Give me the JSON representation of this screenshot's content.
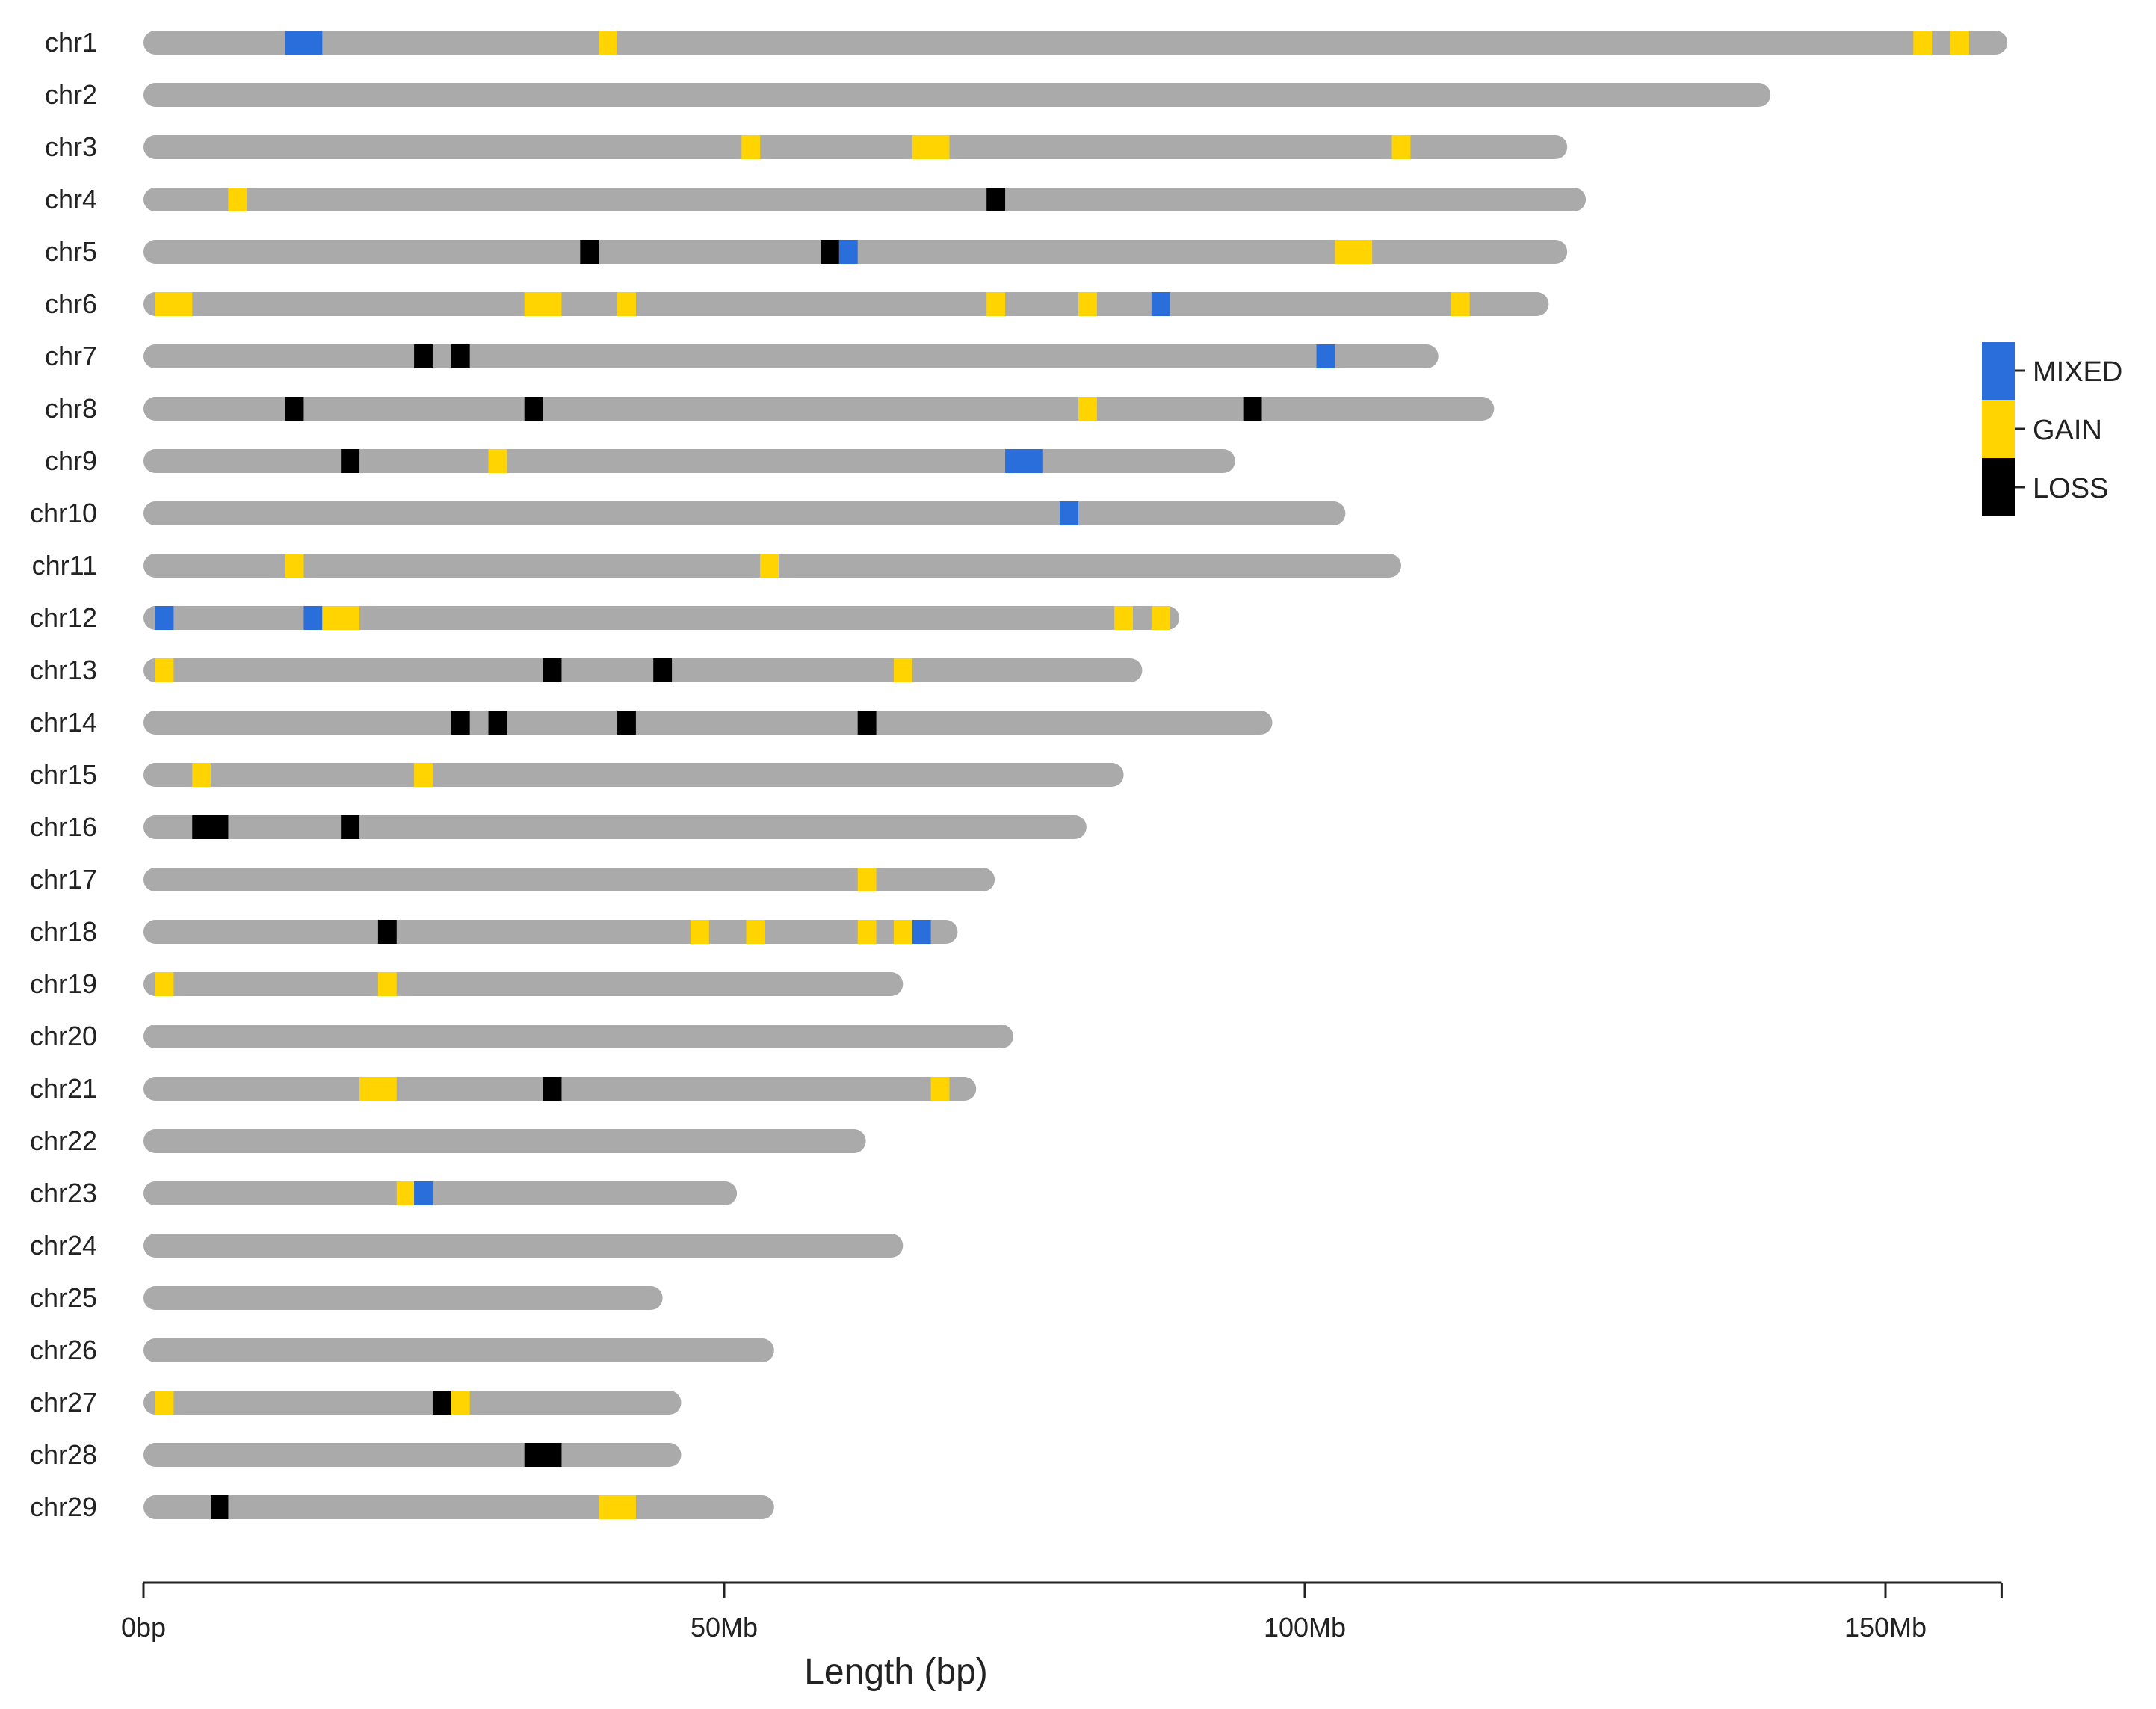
{
  "chart_data": {
    "type": "chromosome-ideogram",
    "xlabel": "Length (bp)",
    "xlim": [
      0,
      160
    ],
    "x_unit": "Mb",
    "x_ticks": [
      {
        "value": 0,
        "label": "0bp"
      },
      {
        "value": 50,
        "label": "50Mb"
      },
      {
        "value": 100,
        "label": "100Mb"
      },
      {
        "value": 150,
        "label": "150Mb"
      }
    ],
    "colors": {
      "chromosome": "#aaaaaa",
      "MIXED": "#2a6edb",
      "GAIN": "#ffd400",
      "LOSS": "#000000",
      "axis": "#222222"
    },
    "legend": {
      "position": "right",
      "items": [
        {
          "key": "MIXED",
          "label": "MIXED"
        },
        {
          "key": "GAIN",
          "label": "GAIN"
        },
        {
          "key": "LOSS",
          "label": "LOSS"
        }
      ]
    },
    "chromosomes": [
      {
        "name": "chr1",
        "length": 160.5,
        "events": [
          {
            "start": 12.2,
            "end": 15.4,
            "type": "MIXED"
          },
          {
            "start": 39.2,
            "end": 40.8,
            "type": "GAIN"
          },
          {
            "start": 152.4,
            "end": 154.0,
            "type": "GAIN"
          },
          {
            "start": 155.6,
            "end": 157.2,
            "type": "GAIN"
          }
        ]
      },
      {
        "name": "chr2",
        "length": 140.1,
        "events": []
      },
      {
        "name": "chr3",
        "length": 122.6,
        "events": [
          {
            "start": 51.5,
            "end": 53.1,
            "type": "GAIN"
          },
          {
            "start": 66.2,
            "end": 69.4,
            "type": "GAIN"
          },
          {
            "start": 107.5,
            "end": 109.1,
            "type": "GAIN"
          }
        ]
      },
      {
        "name": "chr4",
        "length": 124.2,
        "events": [
          {
            "start": 7.3,
            "end": 8.9,
            "type": "GAIN"
          },
          {
            "start": 72.6,
            "end": 74.2,
            "type": "LOSS"
          }
        ]
      },
      {
        "name": "chr5",
        "length": 122.6,
        "events": [
          {
            "start": 37.6,
            "end": 39.2,
            "type": "LOSS"
          },
          {
            "start": 58.3,
            "end": 59.9,
            "type": "LOSS"
          },
          {
            "start": 59.9,
            "end": 61.5,
            "type": "MIXED"
          },
          {
            "start": 102.6,
            "end": 105.8,
            "type": "GAIN"
          }
        ]
      },
      {
        "name": "chr6",
        "length": 121.0,
        "events": [
          {
            "start": 1.0,
            "end": 4.2,
            "type": "GAIN"
          },
          {
            "start": 32.8,
            "end": 36.0,
            "type": "GAIN"
          },
          {
            "start": 40.8,
            "end": 42.4,
            "type": "GAIN"
          },
          {
            "start": 72.6,
            "end": 74.2,
            "type": "GAIN"
          },
          {
            "start": 80.5,
            "end": 82.1,
            "type": "GAIN"
          },
          {
            "start": 86.8,
            "end": 88.4,
            "type": "MIXED"
          },
          {
            "start": 112.6,
            "end": 114.2,
            "type": "GAIN"
          }
        ]
      },
      {
        "name": "chr7",
        "length": 111.5,
        "events": [
          {
            "start": 23.3,
            "end": 24.9,
            "type": "LOSS"
          },
          {
            "start": 26.5,
            "end": 28.1,
            "type": "LOSS"
          },
          {
            "start": 101.0,
            "end": 102.6,
            "type": "MIXED"
          }
        ]
      },
      {
        "name": "chr8",
        "length": 116.3,
        "events": [
          {
            "start": 12.2,
            "end": 13.8,
            "type": "LOSS"
          },
          {
            "start": 32.8,
            "end": 34.4,
            "type": "LOSS"
          },
          {
            "start": 80.5,
            "end": 82.1,
            "type": "GAIN"
          },
          {
            "start": 94.7,
            "end": 96.3,
            "type": "LOSS"
          }
        ]
      },
      {
        "name": "chr9",
        "length": 94.0,
        "events": [
          {
            "start": 17.0,
            "end": 18.6,
            "type": "LOSS"
          },
          {
            "start": 29.7,
            "end": 31.3,
            "type": "GAIN"
          },
          {
            "start": 74.2,
            "end": 77.4,
            "type": "MIXED"
          }
        ]
      },
      {
        "name": "chr10",
        "length": 103.5,
        "events": [
          {
            "start": 78.9,
            "end": 80.5,
            "type": "MIXED"
          }
        ]
      },
      {
        "name": "chr11",
        "length": 108.3,
        "events": [
          {
            "start": 12.2,
            "end": 13.8,
            "type": "GAIN"
          },
          {
            "start": 53.1,
            "end": 54.7,
            "type": "GAIN"
          }
        ]
      },
      {
        "name": "chr12",
        "length": 89.2,
        "events": [
          {
            "start": 1.0,
            "end": 2.6,
            "type": "MIXED"
          },
          {
            "start": 13.8,
            "end": 15.4,
            "type": "MIXED"
          },
          {
            "start": 15.4,
            "end": 18.6,
            "type": "GAIN"
          },
          {
            "start": 83.6,
            "end": 85.2,
            "type": "GAIN"
          },
          {
            "start": 86.8,
            "end": 88.4,
            "type": "GAIN"
          }
        ]
      },
      {
        "name": "chr13",
        "length": 86.0,
        "events": [
          {
            "start": 1.0,
            "end": 2.6,
            "type": "GAIN"
          },
          {
            "start": 34.4,
            "end": 36.0,
            "type": "LOSS"
          },
          {
            "start": 43.9,
            "end": 45.5,
            "type": "LOSS"
          },
          {
            "start": 64.6,
            "end": 66.2,
            "type": "GAIN"
          }
        ]
      },
      {
        "name": "chr14",
        "length": 97.2,
        "events": [
          {
            "start": 26.5,
            "end": 28.1,
            "type": "LOSS"
          },
          {
            "start": 29.7,
            "end": 31.3,
            "type": "LOSS"
          },
          {
            "start": 40.8,
            "end": 42.4,
            "type": "LOSS"
          },
          {
            "start": 61.5,
            "end": 63.1,
            "type": "LOSS"
          }
        ]
      },
      {
        "name": "chr15",
        "length": 84.4,
        "events": [
          {
            "start": 4.2,
            "end": 5.8,
            "type": "GAIN"
          },
          {
            "start": 23.3,
            "end": 24.9,
            "type": "GAIN"
          }
        ]
      },
      {
        "name": "chr16",
        "length": 81.2,
        "events": [
          {
            "start": 4.2,
            "end": 7.3,
            "type": "LOSS"
          },
          {
            "start": 17.0,
            "end": 18.6,
            "type": "LOSS"
          }
        ]
      },
      {
        "name": "chr17",
        "length": 73.3,
        "events": [
          {
            "start": 61.5,
            "end": 63.1,
            "type": "GAIN"
          }
        ]
      },
      {
        "name": "chr18",
        "length": 70.1,
        "events": [
          {
            "start": 20.2,
            "end": 21.8,
            "type": "LOSS"
          },
          {
            "start": 47.1,
            "end": 48.7,
            "type": "GAIN"
          },
          {
            "start": 51.9,
            "end": 53.5,
            "type": "GAIN"
          },
          {
            "start": 61.5,
            "end": 63.1,
            "type": "GAIN"
          },
          {
            "start": 64.6,
            "end": 66.2,
            "type": "GAIN"
          },
          {
            "start": 66.2,
            "end": 67.8,
            "type": "MIXED"
          }
        ]
      },
      {
        "name": "chr19",
        "length": 65.4,
        "events": [
          {
            "start": 1.0,
            "end": 2.6,
            "type": "GAIN"
          },
          {
            "start": 20.2,
            "end": 21.8,
            "type": "GAIN"
          }
        ]
      },
      {
        "name": "chr20",
        "length": 74.9,
        "events": []
      },
      {
        "name": "chr21",
        "length": 71.7,
        "events": [
          {
            "start": 18.6,
            "end": 21.8,
            "type": "GAIN"
          },
          {
            "start": 34.4,
            "end": 36.0,
            "type": "LOSS"
          },
          {
            "start": 67.8,
            "end": 69.4,
            "type": "GAIN"
          }
        ]
      },
      {
        "name": "chr22",
        "length": 62.2,
        "events": []
      },
      {
        "name": "chr23",
        "length": 51.1,
        "events": [
          {
            "start": 21.8,
            "end": 23.3,
            "type": "GAIN"
          },
          {
            "start": 23.3,
            "end": 24.9,
            "type": "MIXED"
          }
        ]
      },
      {
        "name": "chr24",
        "length": 65.4,
        "events": []
      },
      {
        "name": "chr25",
        "length": 44.7,
        "events": []
      },
      {
        "name": "chr26",
        "length": 54.3,
        "events": []
      },
      {
        "name": "chr27",
        "length": 46.3,
        "events": [
          {
            "start": 1.0,
            "end": 2.6,
            "type": "GAIN"
          },
          {
            "start": 24.9,
            "end": 26.5,
            "type": "LOSS"
          },
          {
            "start": 26.5,
            "end": 28.1,
            "type": "GAIN"
          }
        ]
      },
      {
        "name": "chr28",
        "length": 46.3,
        "events": [
          {
            "start": 32.8,
            "end": 36.0,
            "type": "LOSS"
          }
        ]
      },
      {
        "name": "chr29",
        "length": 54.3,
        "events": [
          {
            "start": 5.8,
            "end": 7.3,
            "type": "LOSS"
          },
          {
            "start": 39.2,
            "end": 42.4,
            "type": "GAIN"
          }
        ]
      }
    ]
  }
}
